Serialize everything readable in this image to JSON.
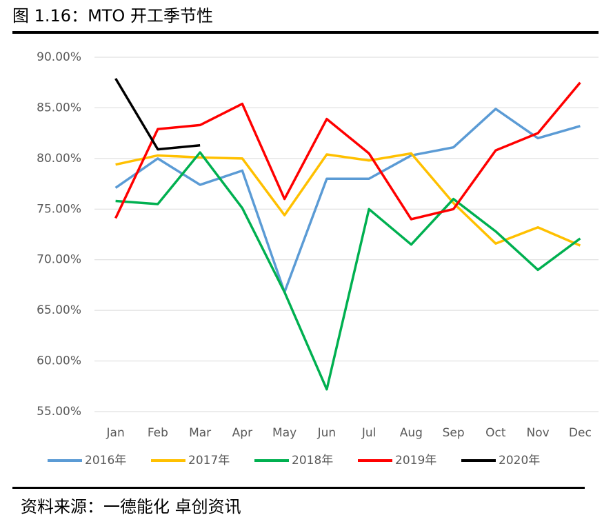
{
  "chart_data": {
    "type": "line",
    "title": "图 1.16：MTO 开工季节性",
    "categories": [
      "Jan",
      "Feb",
      "Mar",
      "Apr",
      "May",
      "Jun",
      "Jul",
      "Aug",
      "Sep",
      "Oct",
      "Nov",
      "Dec"
    ],
    "series": [
      {
        "name": "2016年",
        "color": "#5b9bd5",
        "values": [
          77.1,
          80.0,
          77.4,
          78.8,
          66.8,
          78.0,
          78.0,
          80.3,
          81.1,
          84.9,
          82.0,
          83.2
        ]
      },
      {
        "name": "2017年",
        "color": "#ffc000",
        "values": [
          79.4,
          80.3,
          80.1,
          80.0,
          74.4,
          80.4,
          79.8,
          80.5,
          75.6,
          71.6,
          73.2,
          71.4
        ]
      },
      {
        "name": "2018年",
        "color": "#00b050",
        "values": [
          75.8,
          75.5,
          80.6,
          75.1,
          66.8,
          57.2,
          75.0,
          71.5,
          76.0,
          72.8,
          69.0,
          72.1
        ]
      },
      {
        "name": "2019年",
        "color": "#ff0000",
        "values": [
          74.1,
          82.9,
          83.3,
          85.4,
          76.0,
          83.9,
          80.5,
          74.0,
          75.0,
          80.8,
          82.5,
          87.5
        ]
      },
      {
        "name": "2020年",
        "color": "#000000",
        "values": [
          87.9,
          80.9,
          81.3,
          null,
          null,
          null,
          null,
          null,
          null,
          null,
          null,
          null
        ]
      }
    ],
    "ylim": [
      55,
      90
    ],
    "yticks": [
      {
        "value": 55,
        "label": "55.00%"
      },
      {
        "value": 60,
        "label": "60.00%"
      },
      {
        "value": 65,
        "label": "65.00%"
      },
      {
        "value": 70,
        "label": "70.00%"
      },
      {
        "value": 75,
        "label": "75.00%"
      },
      {
        "value": 80,
        "label": "80.00%"
      },
      {
        "value": 85,
        "label": "85.00%"
      },
      {
        "value": 90,
        "label": "90.00%"
      }
    ],
    "grid": true,
    "legend": "bottom"
  },
  "footer": "资料来源：一德能化  卓创资讯"
}
